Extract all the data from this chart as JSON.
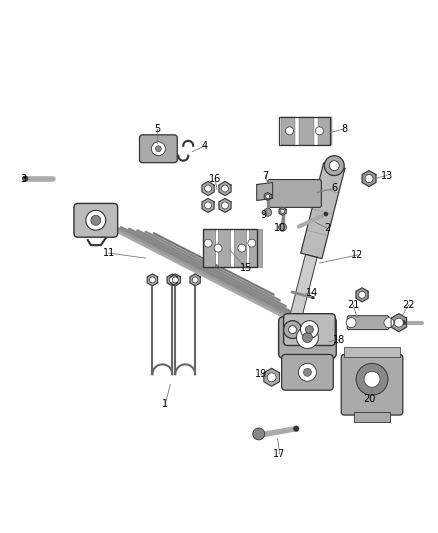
{
  "bg_color": "#ffffff",
  "fig_width": 4.38,
  "fig_height": 5.33,
  "dpi": 100,
  "line_color": "#555555",
  "part_color": "#888888",
  "number_color": "#000000",
  "leader_color": "#777777",
  "dark": "#333333",
  "mid": "#888888",
  "light": "#cccccc"
}
